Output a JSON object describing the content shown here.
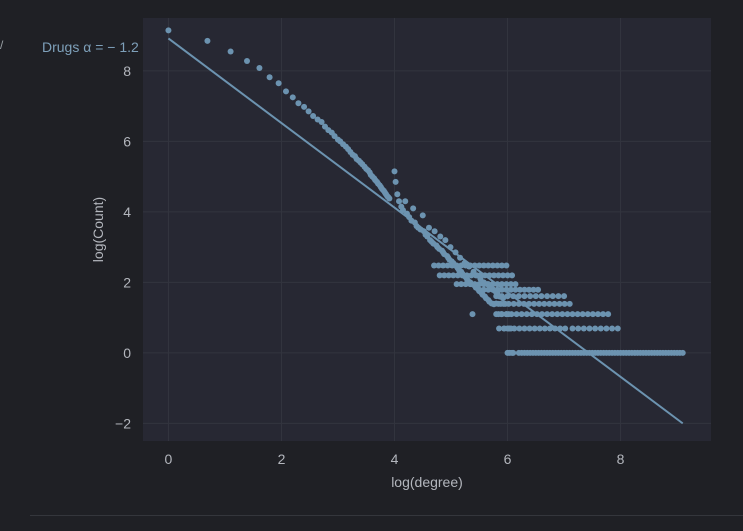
{
  "chart_data": {
    "type": "scatter",
    "title": "",
    "xlabel": "log(degree)",
    "ylabel": "log(Count)",
    "xlim": [
      -0.45,
      9.6
    ],
    "ylim": [
      -2.5,
      9.5
    ],
    "xticks": [
      0,
      2,
      4,
      6,
      8
    ],
    "yticks": [
      -2,
      0,
      2,
      4,
      6,
      8
    ],
    "grid": true,
    "legend": "none",
    "annotation": "Drugs α = − 1.2",
    "colors": {
      "background": "#1f2025",
      "plot_area": "#272833",
      "grid": "#33353f",
      "points": "#6c93b0",
      "fit_line": "#6c93b0",
      "text": "#b3b6bd",
      "annotation": "#7ea0ba"
    },
    "fit_line": {
      "slope": -1.2,
      "intercept": 8.92,
      "x_range": [
        0,
        9.1
      ]
    },
    "series": [
      {
        "points": [
          [
            0.0,
            9.15
          ],
          [
            0.69,
            8.85
          ],
          [
            1.1,
            8.55
          ],
          [
            1.39,
            8.28
          ],
          [
            1.61,
            8.08
          ],
          [
            1.79,
            7.82
          ],
          [
            1.95,
            7.65
          ],
          [
            2.08,
            7.42
          ],
          [
            2.2,
            7.25
          ],
          [
            2.3,
            7.08
          ],
          [
            2.4,
            6.98
          ],
          [
            2.48,
            6.85
          ],
          [
            2.56,
            6.72
          ],
          [
            2.64,
            6.62
          ],
          [
            2.71,
            6.55
          ],
          [
            2.77,
            6.42
          ],
          [
            2.83,
            6.32
          ],
          [
            2.89,
            6.25
          ],
          [
            2.94,
            6.15
          ],
          [
            3.0,
            6.05
          ],
          [
            3.04,
            6.0
          ],
          [
            3.09,
            5.92
          ],
          [
            3.14,
            5.85
          ],
          [
            3.18,
            5.78
          ],
          [
            3.22,
            5.7
          ],
          [
            3.26,
            5.62
          ],
          [
            3.3,
            5.58
          ],
          [
            3.33,
            5.5
          ],
          [
            3.37,
            5.45
          ],
          [
            3.4,
            5.4
          ],
          [
            3.43,
            5.35
          ],
          [
            3.47,
            5.28
          ],
          [
            3.5,
            5.22
          ],
          [
            3.53,
            5.18
          ],
          [
            3.56,
            5.12
          ],
          [
            3.58,
            5.05
          ],
          [
            3.61,
            5.0
          ],
          [
            3.64,
            4.95
          ],
          [
            3.66,
            4.9
          ],
          [
            3.69,
            4.85
          ],
          [
            3.71,
            4.8
          ],
          [
            3.74,
            4.75
          ],
          [
            3.76,
            4.7
          ],
          [
            3.78,
            4.65
          ],
          [
            3.81,
            4.6
          ],
          [
            3.83,
            4.55
          ],
          [
            3.85,
            4.5
          ],
          [
            3.87,
            4.45
          ],
          [
            3.89,
            4.42
          ],
          [
            3.91,
            4.38
          ],
          [
            4.0,
            5.15
          ],
          [
            4.02,
            4.85
          ],
          [
            4.05,
            4.5
          ],
          [
            4.08,
            4.3
          ],
          [
            4.12,
            4.15
          ],
          [
            4.15,
            4.05
          ],
          [
            4.19,
            4.3
          ],
          [
            4.22,
            3.95
          ],
          [
            4.26,
            3.85
          ],
          [
            4.3,
            3.75
          ],
          [
            4.33,
            4.1
          ],
          [
            4.36,
            3.7
          ],
          [
            4.39,
            3.6
          ],
          [
            4.42,
            3.55
          ],
          [
            4.46,
            3.5
          ],
          [
            4.5,
            3.9
          ],
          [
            4.52,
            3.45
          ],
          [
            4.55,
            3.35
          ],
          [
            4.58,
            3.3
          ],
          [
            4.61,
            3.55
          ],
          [
            4.63,
            3.2
          ],
          [
            4.66,
            3.15
          ],
          [
            4.69,
            3.1
          ],
          [
            4.71,
            3.45
          ],
          [
            4.74,
            3.05
          ],
          [
            4.76,
            3.0
          ],
          [
            4.79,
            2.95
          ],
          [
            4.81,
            3.3
          ],
          [
            4.84,
            2.9
          ],
          [
            4.86,
            2.85
          ],
          [
            4.88,
            2.8
          ],
          [
            4.9,
            3.2
          ],
          [
            4.93,
            2.75
          ],
          [
            4.95,
            2.7
          ],
          [
            4.97,
            2.65
          ],
          [
            4.99,
            3.0
          ],
          [
            5.01,
            2.6
          ],
          [
            5.04,
            2.55
          ],
          [
            5.06,
            2.5
          ],
          [
            5.08,
            2.85
          ],
          [
            5.1,
            2.45
          ],
          [
            5.12,
            2.4
          ],
          [
            5.14,
            2.35
          ],
          [
            5.16,
            2.7
          ],
          [
            5.18,
            2.3
          ],
          [
            5.2,
            2.25
          ],
          [
            5.22,
            2.2
          ],
          [
            5.24,
            2.55
          ],
          [
            5.26,
            2.15
          ],
          [
            5.28,
            2.1
          ],
          [
            5.3,
            2.05
          ],
          [
            5.32,
            2.45
          ],
          [
            5.34,
            2.0
          ],
          [
            5.36,
            1.95
          ],
          [
            5.38,
            1.1
          ],
          [
            5.4,
            2.3
          ],
          [
            5.42,
            1.9
          ],
          [
            5.44,
            1.85
          ],
          [
            5.46,
            2.2
          ],
          [
            5.48,
            1.8
          ],
          [
            5.5,
            1.75
          ],
          [
            5.52,
            2.1
          ],
          [
            5.54,
            1.7
          ],
          [
            5.56,
            1.65
          ],
          [
            5.58,
            2.0
          ],
          [
            5.6,
            1.6
          ],
          [
            5.62,
            1.55
          ],
          [
            5.64,
            1.95
          ],
          [
            5.66,
            1.5
          ],
          [
            5.68,
            1.45
          ],
          [
            5.7,
            1.85
          ],
          [
            5.72,
            1.4
          ],
          [
            5.74,
            1.8
          ],
          [
            5.76,
            1.38
          ],
          [
            5.78,
            1.75
          ],
          [
            5.8,
            1.4
          ],
          [
            5.82,
            1.7
          ],
          [
            5.84,
            1.1
          ],
          [
            5.86,
            1.6
          ],
          [
            5.88,
            1.39
          ],
          [
            5.9,
            1.1
          ],
          [
            5.92,
            1.55
          ],
          [
            5.94,
            0.69
          ],
          [
            5.96,
            1.39
          ],
          [
            5.98,
            1.1
          ],
          [
            6.0,
            0.69
          ],
          [
            6.02,
            1.1
          ],
          [
            6.04,
            0.0
          ],
          [
            6.06,
            0.69
          ],
          [
            6.08,
            0.0
          ]
        ],
        "bands": [
          {
            "y": 2.48,
            "x": [
              4.7,
              6.05
            ],
            "step": 0.08
          },
          {
            "y": 2.2,
            "x": [
              4.8,
              6.1
            ],
            "step": 0.08
          },
          {
            "y": 1.95,
            "x": [
              5.1,
              6.2
            ],
            "step": 0.08
          },
          {
            "y": 1.79,
            "x": [
              5.5,
              6.55
            ],
            "step": 0.08
          },
          {
            "y": 1.61,
            "x": [
              5.8,
              7.0
            ],
            "step": 0.1
          },
          {
            "y": 1.39,
            "x": [
              5.75,
              7.1
            ],
            "step": 0.09
          },
          {
            "y": 1.1,
            "x": [
              5.8,
              7.8
            ],
            "step": 0.09
          },
          {
            "y": 0.69,
            "x": [
              5.85,
              7.1
            ],
            "step": 0.09
          },
          {
            "y": 0.69,
            "x": [
              7.15,
              8.0
            ],
            "step": 0.1
          },
          {
            "y": 0.0,
            "x": [
              6.0,
              6.1
            ],
            "step": 0.1
          },
          {
            "y": 0.0,
            "x": [
              6.2,
              9.12
            ],
            "step": 0.05
          }
        ]
      }
    ]
  }
}
